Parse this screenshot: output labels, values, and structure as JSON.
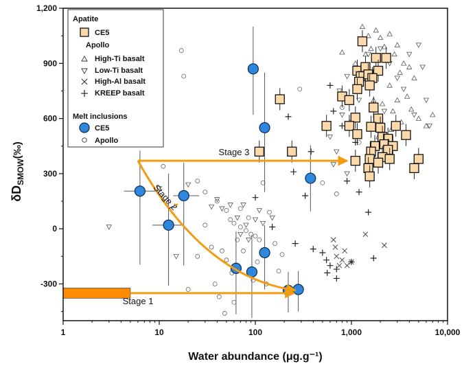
{
  "chart_data": {
    "type": "scatter",
    "x_scale": "log",
    "xlim": [
      1,
      10000
    ],
    "ylim": [
      -500,
      1200
    ],
    "xlabel": "Water abundance (μg.g⁻¹)",
    "ylabel_main": "δD",
    "ylabel_sub": "SMOW",
    "ylabel_unit": "(‰)",
    "x_ticks": [
      {
        "value": 1,
        "label": "1"
      },
      {
        "value": 10,
        "label": "10"
      },
      {
        "value": 100,
        "label": "100"
      },
      {
        "value": 1000,
        "label": "1,000"
      },
      {
        "value": 10000,
        "label": "10,000"
      }
    ],
    "y_ticks": [
      {
        "value": -300,
        "label": "-300"
      },
      {
        "value": 0,
        "label": "0"
      },
      {
        "value": 300,
        "label": "300"
      },
      {
        "value": 600,
        "label": "600"
      },
      {
        "value": 900,
        "label": "900"
      },
      {
        "value": 1200,
        "label": "1,200"
      }
    ],
    "legend": {
      "position": "top-left",
      "apatite_header": "Apatite",
      "ce5_apatite": "CE5",
      "apollo_header": "Apollo",
      "high_ti": "High-Ti basalt",
      "low_ti": "Low-Ti basalt",
      "high_al": "High-Al basalt",
      "kreep": "KREEP basalt",
      "melt_header": "Melt inclusions",
      "ce5_melt": "CE5",
      "apollo_melt": "Apollo"
    },
    "colors": {
      "ce5_apatite_fill": "#fcd9a8",
      "ce5_melt_fill": "#2e86de",
      "arrow": "#f39c12",
      "bar": "#ff8c00",
      "errorbar": "#555555"
    },
    "stages": [
      {
        "name": "Stage 1",
        "label": "Stage 1",
        "points": [
          [
            1,
            -350
          ],
          [
            280,
            -350
          ]
        ]
      },
      {
        "name": "Stage 2",
        "label": "Stage 2",
        "points": [
          [
            6,
            370
          ],
          [
            280,
            -350
          ]
        ]
      },
      {
        "name": "Stage 3",
        "label": "Stage 3",
        "points": [
          [
            6,
            370
          ],
          [
            1000,
            370
          ]
        ]
      }
    ],
    "initial_bar": {
      "x_range": [
        1,
        5
      ],
      "y": -350
    },
    "series": [
      {
        "name": "CE5 melt inclusions",
        "marker": "circle-filled",
        "points": [
          {
            "x": 95,
            "y": 870,
            "ey_lo": 250,
            "ey_hi": 230
          },
          {
            "x": 125,
            "y": 550,
            "ey_lo": 350,
            "ey_hi": 300
          },
          {
            "x": 375,
            "y": 275,
            "ey_lo": 180,
            "ey_hi": 180
          },
          {
            "x": 6.3,
            "y": 205,
            "ey_lo": 400,
            "ey_hi": 220,
            "ex_lo": 2,
            "ex_hi": 3
          },
          {
            "x": 18,
            "y": 180,
            "ey_lo": 380,
            "ey_hi": 180,
            "ex_lo": 4,
            "ex_hi": 8
          },
          {
            "x": 12.5,
            "y": 20,
            "ey_lo": 330,
            "ey_hi": 280,
            "ex_lo": 4,
            "ex_hi": 5
          },
          {
            "x": 125,
            "y": -130,
            "ey_lo": 200,
            "ey_hi": 150
          },
          {
            "x": 63,
            "y": -215,
            "ey_lo": 250,
            "ey_hi": 200
          },
          {
            "x": 92,
            "y": -235,
            "ey_lo": 250,
            "ey_hi": 200
          },
          {
            "x": 220,
            "y": -335,
            "ey_lo": 120,
            "ey_hi": 100
          },
          {
            "x": 280,
            "y": -330,
            "ey_lo": 120,
            "ey_hi": 100
          }
        ]
      },
      {
        "name": "CE5 apatite",
        "marker": "square-filled",
        "points": [
          {
            "x": 1300,
            "y": 1020
          },
          {
            "x": 1800,
            "y": 930
          },
          {
            "x": 2300,
            "y": 930
          },
          {
            "x": 1150,
            "y": 860
          },
          {
            "x": 1400,
            "y": 880
          },
          {
            "x": 1900,
            "y": 860
          },
          {
            "x": 1250,
            "y": 830
          },
          {
            "x": 1500,
            "y": 840
          },
          {
            "x": 1650,
            "y": 820
          },
          {
            "x": 1200,
            "y": 800
          },
          {
            "x": 1150,
            "y": 760
          },
          {
            "x": 1550,
            "y": 780
          },
          {
            "x": 800,
            "y": 720
          },
          {
            "x": 950,
            "y": 700
          },
          {
            "x": 180,
            "y": 705
          },
          {
            "x": 1100,
            "y": 605
          },
          {
            "x": 1700,
            "y": 660
          },
          {
            "x": 1900,
            "y": 600
          },
          {
            "x": 550,
            "y": 560
          },
          {
            "x": 950,
            "y": 560
          },
          {
            "x": 1600,
            "y": 555
          },
          {
            "x": 2000,
            "y": 550
          },
          {
            "x": 2900,
            "y": 560
          },
          {
            "x": 1150,
            "y": 515
          },
          {
            "x": 2100,
            "y": 500
          },
          {
            "x": 2400,
            "y": 490
          },
          {
            "x": 3700,
            "y": 510
          },
          {
            "x": 110,
            "y": 420
          },
          {
            "x": 240,
            "y": 420
          },
          {
            "x": 1750,
            "y": 450
          },
          {
            "x": 2200,
            "y": 460
          },
          {
            "x": 2700,
            "y": 450
          },
          {
            "x": 1600,
            "y": 420
          },
          {
            "x": 2400,
            "y": 430
          },
          {
            "x": 1550,
            "y": 380
          },
          {
            "x": 2100,
            "y": 390
          },
          {
            "x": 2500,
            "y": 380
          },
          {
            "x": 1100,
            "y": 370
          },
          {
            "x": 1900,
            "y": 360
          },
          {
            "x": 1500,
            "y": 330
          },
          {
            "x": 4500,
            "y": 330
          },
          {
            "x": 5000,
            "y": 380
          },
          {
            "x": 1550,
            "y": 285
          }
        ]
      },
      {
        "name": "Apollo High-Ti basalt",
        "marker": "triangle-up",
        "points": [
          {
            "x": 1300,
            "y": 1100
          },
          {
            "x": 1500,
            "y": 1050
          },
          {
            "x": 1800,
            "y": 1080
          },
          {
            "x": 2000,
            "y": 1040
          },
          {
            "x": 2500,
            "y": 1060
          },
          {
            "x": 3000,
            "y": 1000
          },
          {
            "x": 1600,
            "y": 980
          },
          {
            "x": 2200,
            "y": 990
          },
          {
            "x": 2800,
            "y": 950
          },
          {
            "x": 3500,
            "y": 900
          },
          {
            "x": 4000,
            "y": 880
          },
          {
            "x": 1400,
            "y": 950
          },
          {
            "x": 1900,
            "y": 920
          },
          {
            "x": 3200,
            "y": 850
          },
          {
            "x": 4500,
            "y": 820
          },
          {
            "x": 2500,
            "y": 780
          },
          {
            "x": 3000,
            "y": 700
          },
          {
            "x": 3800,
            "y": 720
          },
          {
            "x": 4200,
            "y": 650
          },
          {
            "x": 5000,
            "y": 600
          },
          {
            "x": 2100,
            "y": 680
          },
          {
            "x": 2700,
            "y": 640
          },
          {
            "x": 1700,
            "y": 700
          },
          {
            "x": 6000,
            "y": 560
          },
          {
            "x": 7000,
            "y": 620
          },
          {
            "x": 800,
            "y": 960
          },
          {
            "x": 1100,
            "y": 900
          },
          {
            "x": 3300,
            "y": 580
          },
          {
            "x": 2600,
            "y": 540
          },
          {
            "x": 1900,
            "y": 500
          }
        ]
      },
      {
        "name": "Apollo Low-Ti basalt",
        "marker": "triangle-down",
        "points": [
          {
            "x": 3,
            "y": 10
          },
          {
            "x": 10,
            "y": 220
          },
          {
            "x": 20,
            "y": 240
          },
          {
            "x": 15,
            "y": -150
          },
          {
            "x": 40,
            "y": 160
          },
          {
            "x": 35,
            "y": 120
          },
          {
            "x": 55,
            "y": 130
          },
          {
            "x": 65,
            "y": 60
          },
          {
            "x": 80,
            "y": 20
          },
          {
            "x": 45,
            "y": 110
          },
          {
            "x": 110,
            "y": 100
          },
          {
            "x": 150,
            "y": 60
          },
          {
            "x": 75,
            "y": 130
          },
          {
            "x": 120,
            "y": 30
          },
          {
            "x": 70,
            "y": -30
          },
          {
            "x": 85,
            "y": -60
          },
          {
            "x": 100,
            "y": 50
          },
          {
            "x": 600,
            "y": 500
          },
          {
            "x": 800,
            "y": 620
          },
          {
            "x": 1000,
            "y": 580
          },
          {
            "x": 750,
            "y": 750
          },
          {
            "x": 900,
            "y": 830
          },
          {
            "x": 1200,
            "y": 700
          },
          {
            "x": 1500,
            "y": 950
          },
          {
            "x": 2000,
            "y": 980
          },
          {
            "x": 2500,
            "y": 900
          },
          {
            "x": 3000,
            "y": 820
          },
          {
            "x": 3500,
            "y": 760
          },
          {
            "x": 4000,
            "y": 950
          },
          {
            "x": 5000,
            "y": 1000
          },
          {
            "x": 5500,
            "y": 880
          },
          {
            "x": 6000,
            "y": 700
          },
          {
            "x": 6500,
            "y": 560
          },
          {
            "x": 4500,
            "y": 620
          },
          {
            "x": 2200,
            "y": 640
          },
          {
            "x": 2800,
            "y": 560
          },
          {
            "x": 700,
            "y": 420
          },
          {
            "x": 650,
            "y": 350
          },
          {
            "x": 900,
            "y": 300
          }
        ]
      },
      {
        "name": "Apollo High-Al basalt",
        "marker": "x",
        "points": [
          {
            "x": 650,
            "y": -60
          },
          {
            "x": 700,
            "y": -150
          },
          {
            "x": 800,
            "y": -170
          },
          {
            "x": 900,
            "y": -200
          },
          {
            "x": 1000,
            "y": -180
          },
          {
            "x": 1400,
            "y": -30
          },
          {
            "x": 2200,
            "y": -90
          },
          {
            "x": 750,
            "y": -200
          },
          {
            "x": 680,
            "y": -100
          },
          {
            "x": 850,
            "y": -120
          }
        ]
      },
      {
        "name": "Apollo KREEP basalt",
        "marker": "plus",
        "points": [
          {
            "x": 220,
            "y": 610
          },
          {
            "x": 250,
            "y": 310
          },
          {
            "x": 380,
            "y": 420
          },
          {
            "x": 330,
            "y": 180
          },
          {
            "x": 100,
            "y": 170
          },
          {
            "x": 150,
            "y": 10
          },
          {
            "x": 260,
            "y": -80
          },
          {
            "x": 400,
            "y": -110
          },
          {
            "x": 500,
            "y": -130
          },
          {
            "x": 550,
            "y": -170
          },
          {
            "x": 600,
            "y": -200
          },
          {
            "x": 700,
            "y": -270
          },
          {
            "x": 1000,
            "y": -180
          },
          {
            "x": 1700,
            "y": -160
          },
          {
            "x": 1500,
            "y": 90
          },
          {
            "x": 600,
            "y": 780
          },
          {
            "x": 650,
            "y": 640
          },
          {
            "x": 800,
            "y": 560
          },
          {
            "x": 1100,
            "y": 470
          },
          {
            "x": 900,
            "y": 260
          },
          {
            "x": 1200,
            "y": 200
          },
          {
            "x": 560,
            "y": -240
          },
          {
            "x": 700,
            "y": -220
          }
        ]
      },
      {
        "name": "Apollo melt inclusions",
        "marker": "circle-open",
        "points": [
          {
            "x": 17,
            "y": 970
          },
          {
            "x": 18,
            "y": 830
          },
          {
            "x": 290,
            "y": 760
          },
          {
            "x": 11,
            "y": 340
          },
          {
            "x": 25,
            "y": 260
          },
          {
            "x": 30,
            "y": 200
          },
          {
            "x": 40,
            "y": 150
          },
          {
            "x": 50,
            "y": 100
          },
          {
            "x": 55,
            "y": 50
          },
          {
            "x": 60,
            "y": 30
          },
          {
            "x": 70,
            "y": 10
          },
          {
            "x": 80,
            "y": -10
          },
          {
            "x": 90,
            "y": -30
          },
          {
            "x": 100,
            "y": -40
          },
          {
            "x": 110,
            "y": -60
          },
          {
            "x": 35,
            "y": -100
          },
          {
            "x": 45,
            "y": -120
          },
          {
            "x": 50,
            "y": -170
          },
          {
            "x": 38,
            "y": -300
          },
          {
            "x": 42,
            "y": -370
          },
          {
            "x": 48,
            "y": -460
          },
          {
            "x": 20,
            "y": -330
          },
          {
            "x": 60,
            "y": -400
          },
          {
            "x": 130,
            "y": -300
          },
          {
            "x": 160,
            "y": -80
          },
          {
            "x": 190,
            "y": -140
          },
          {
            "x": 70,
            "y": 110
          },
          {
            "x": 85,
            "y": 60
          },
          {
            "x": 140,
            "y": 90
          },
          {
            "x": 120,
            "y": 250
          },
          {
            "x": 500,
            "y": 250
          },
          {
            "x": 700,
            "y": 190
          },
          {
            "x": 800,
            "y": 660
          },
          {
            "x": 900,
            "y": 560
          },
          {
            "x": 1200,
            "y": 470
          },
          {
            "x": 1100,
            "y": 620
          },
          {
            "x": 30,
            "y": 20
          },
          {
            "x": 65,
            "y": -60
          },
          {
            "x": 75,
            "y": -120
          },
          {
            "x": 25,
            "y": -150
          },
          {
            "x": 57,
            "y": -240
          },
          {
            "x": 95,
            "y": -280
          },
          {
            "x": 105,
            "y": -180
          },
          {
            "x": 175,
            "y": -230
          }
        ]
      }
    ]
  }
}
